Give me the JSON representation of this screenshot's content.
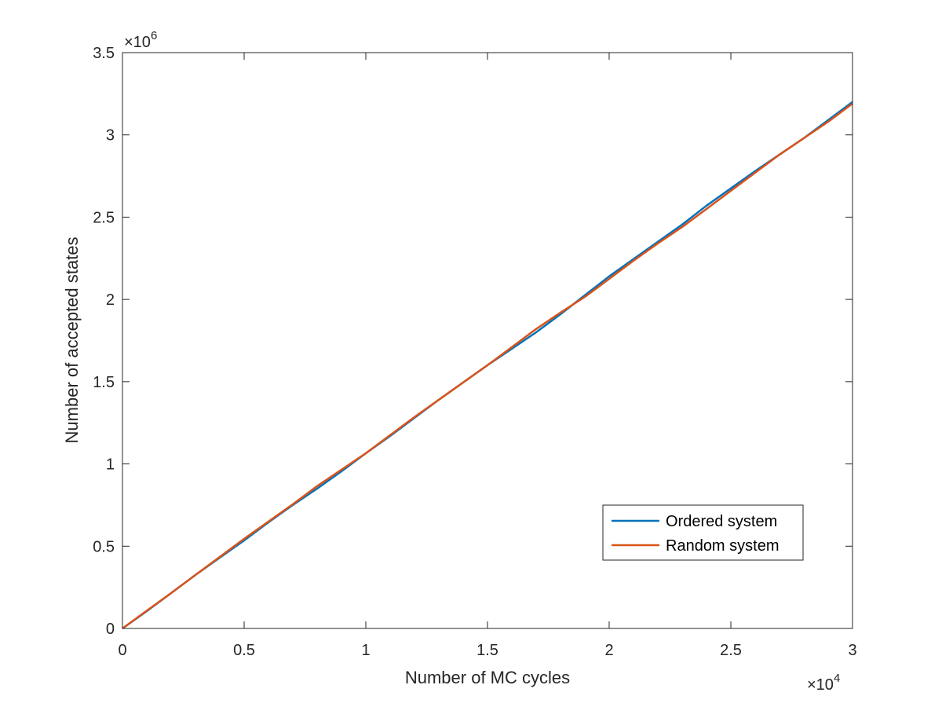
{
  "chart_data": {
    "type": "line",
    "xlabel": "Number of MC cycles",
    "ylabel": "Number of accepted states",
    "xlim": [
      0,
      30000
    ],
    "ylim": [
      0,
      3500000
    ],
    "x_ticks": [
      0,
      5000,
      10000,
      15000,
      20000,
      25000,
      30000
    ],
    "x_tick_labels": [
      "0",
      "0.5",
      "1",
      "1.5",
      "2",
      "2.5",
      "3"
    ],
    "x_multiplier": "×10",
    "x_multiplier_exp": "4",
    "y_ticks": [
      0,
      500000,
      1000000,
      1500000,
      2000000,
      2500000,
      3000000,
      3500000
    ],
    "y_tick_labels": [
      "0",
      "0.5",
      "1",
      "1.5",
      "2",
      "2.5",
      "3",
      "3.5"
    ],
    "y_multiplier": "×10",
    "y_multiplier_exp": "6",
    "grid": false,
    "box": true,
    "legend_position": "bottom-right",
    "x": [
      0,
      1000,
      2000,
      3000,
      4000,
      5000,
      6000,
      7000,
      8000,
      9000,
      10000,
      11000,
      12000,
      13000,
      14000,
      15000,
      16000,
      17000,
      18000,
      19000,
      20000,
      21000,
      22000,
      23000,
      24000,
      25000,
      26000,
      27000,
      28000,
      29000,
      30000
    ],
    "series": [
      {
        "name": "Ordered system",
        "color": "#0072BD",
        "values": [
          0,
          105000,
          215000,
          325000,
          430000,
          535000,
          645000,
          750000,
          850000,
          955000,
          1065000,
          1170000,
          1280000,
          1390000,
          1495000,
          1600000,
          1700000,
          1800000,
          1910000,
          2025000,
          2140000,
          2245000,
          2350000,
          2455000,
          2570000,
          2675000,
          2780000,
          2880000,
          2980000,
          3090000,
          3200000
        ]
      },
      {
        "name": "Random system",
        "color": "#D95319",
        "values": [
          0,
          108000,
          215000,
          325000,
          435000,
          545000,
          650000,
          755000,
          865000,
          965000,
          1065000,
          1175000,
          1285000,
          1390000,
          1495000,
          1600000,
          1710000,
          1820000,
          1920000,
          2015000,
          2125000,
          2235000,
          2340000,
          2440000,
          2550000,
          2660000,
          2770000,
          2880000,
          2980000,
          3080000,
          3190000
        ]
      }
    ]
  }
}
